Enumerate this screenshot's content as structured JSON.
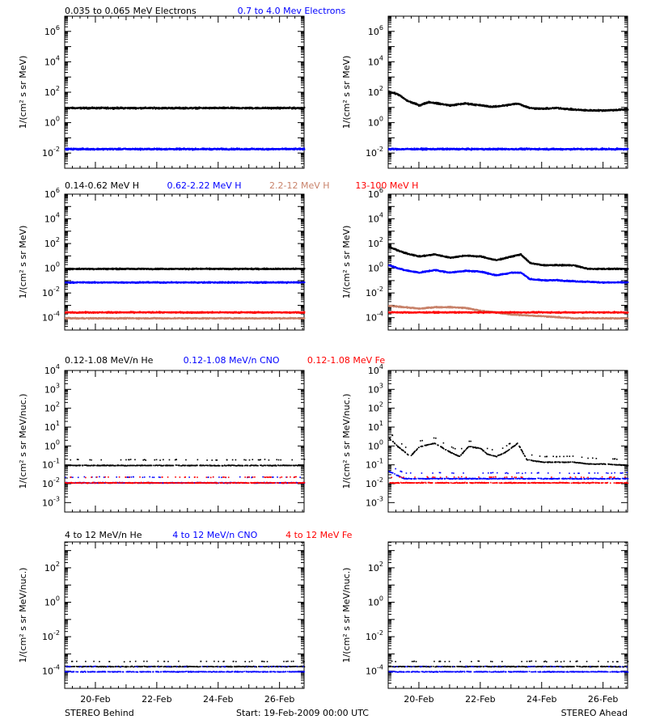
{
  "footer": {
    "left": "STEREO Behind",
    "center": "Start: 19-Feb-2009 00:00 UTC",
    "right": "STEREO Ahead"
  },
  "x_axis": {
    "range_days": [
      19,
      26.8
    ],
    "ticks": [
      20,
      22,
      24,
      26
    ],
    "tick_labels": [
      "20-Feb",
      "22-Feb",
      "24-Feb",
      "26-Feb"
    ]
  },
  "rows": [
    {
      "ylabel": "1/(cm² s sr MeV)",
      "legend": [
        {
          "text": "0.035 to 0.065 MeV Electrons",
          "color": "#000000"
        },
        {
          "text": "0.7 to 4.0 Mev Electrons",
          "color": "#0000ff"
        }
      ]
    },
    {
      "ylabel": "1/(cm² s sr MeV)",
      "legend": [
        {
          "text": "0.14-0.62 MeV H",
          "color": "#000000"
        },
        {
          "text": "0.62-2.22 MeV H",
          "color": "#0000ff"
        },
        {
          "text": "2.2-12 MeV H",
          "color": "#c8826a"
        },
        {
          "text": "13-100 MeV H",
          "color": "#ff0000"
        }
      ]
    },
    {
      "ylabel": "1/(cm² s sr MeV/nuc.)",
      "legend": [
        {
          "text": "0.12-1.08 MeV/n He",
          "color": "#000000"
        },
        {
          "text": "0.12-1.08 MeV/n CNO",
          "color": "#0000ff"
        },
        {
          "text": "0.12-1.08 MeV Fe",
          "color": "#ff0000"
        }
      ]
    },
    {
      "ylabel": "1/(cm² s sr MeV/nuc.)",
      "legend": [
        {
          "text": "4 to 12 MeV/n He",
          "color": "#000000"
        },
        {
          "text": "4 to 12 MeV/n CNO",
          "color": "#0000ff"
        },
        {
          "text": "4 to 12 MeV Fe",
          "color": "#ff0000"
        }
      ]
    }
  ],
  "chart_data": [
    {
      "type": "scatter",
      "panel": "electrons-behind",
      "x_unit": "day of Feb 2009",
      "ylog": true,
      "ylim_exp": [
        -3,
        7
      ],
      "ytick_exps": [
        -2,
        0,
        2,
        4,
        6
      ],
      "series": [
        {
          "name": "0.035 to 0.065 MeV Electrons",
          "color": "#000000",
          "points": [
            [
              19,
              10
            ],
            [
              26.8,
              10
            ]
          ]
        },
        {
          "name": "0.7 to 4.0 Mev Electrons",
          "color": "#0000ff",
          "points": [
            [
              19,
              0.02
            ],
            [
              26.8,
              0.02
            ]
          ]
        }
      ]
    },
    {
      "type": "scatter",
      "panel": "electrons-ahead",
      "x_unit": "day of Feb 2009",
      "ylog": true,
      "ylim_exp": [
        -3,
        7
      ],
      "ytick_exps": [
        -2,
        0,
        2,
        4,
        6
      ],
      "series": [
        {
          "name": "0.035 to 0.065 MeV Electrons",
          "color": "#000000",
          "points": [
            [
              19,
              120
            ],
            [
              19.3,
              80
            ],
            [
              19.6,
              30
            ],
            [
              20,
              15
            ],
            [
              20.3,
              25
            ],
            [
              20.6,
              20
            ],
            [
              21,
              15
            ],
            [
              21.5,
              20
            ],
            [
              22,
              15
            ],
            [
              22.4,
              12
            ],
            [
              22.8,
              15
            ],
            [
              23.2,
              20
            ],
            [
              23.6,
              10
            ],
            [
              24,
              9
            ],
            [
              24.5,
              10
            ],
            [
              25,
              8
            ],
            [
              25.5,
              7
            ],
            [
              26,
              7
            ],
            [
              26.8,
              8
            ]
          ]
        },
        {
          "name": "0.7 to 4.0 Mev Electrons",
          "color": "#0000ff",
          "points": [
            [
              19,
              0.02
            ],
            [
              26.8,
              0.02
            ]
          ]
        }
      ]
    },
    {
      "type": "scatter",
      "panel": "protons-behind",
      "x_unit": "day of Feb 2009",
      "ylog": true,
      "ylim_exp": [
        -5,
        6
      ],
      "ytick_exps": [
        -4,
        -2,
        0,
        2,
        4,
        6
      ],
      "series": [
        {
          "name": "0.14-0.62 MeV H",
          "color": "#000000",
          "points": [
            [
              19,
              1
            ],
            [
              26.8,
              1
            ]
          ]
        },
        {
          "name": "0.62-2.22 MeV H",
          "color": "#0000ff",
          "points": [
            [
              19,
              0.08
            ],
            [
              26.8,
              0.08
            ]
          ]
        },
        {
          "name": "2.2-12 MeV H",
          "color": "#c8826a",
          "points": [
            [
              19,
              0.0001
            ],
            [
              26.8,
              0.0001
            ]
          ]
        },
        {
          "name": "13-100 MeV H",
          "color": "#ff0000",
          "points": [
            [
              19,
              0.0003
            ],
            [
              26.8,
              0.0003
            ]
          ]
        }
      ]
    },
    {
      "type": "scatter",
      "panel": "protons-ahead",
      "x_unit": "day of Feb 2009",
      "ylog": true,
      "ylim_exp": [
        -5,
        6
      ],
      "ytick_exps": [
        -4,
        -2,
        0,
        2,
        4,
        6
      ],
      "series": [
        {
          "name": "0.14-0.62 MeV H",
          "color": "#000000",
          "points": [
            [
              19,
              60
            ],
            [
              19.5,
              20
            ],
            [
              20,
              10
            ],
            [
              20.5,
              15
            ],
            [
              21,
              8
            ],
            [
              21.5,
              12
            ],
            [
              22,
              10
            ],
            [
              22.5,
              5
            ],
            [
              23,
              10
            ],
            [
              23.3,
              15
            ],
            [
              23.6,
              3
            ],
            [
              24,
              2
            ],
            [
              24.5,
              2
            ],
            [
              25,
              2
            ],
            [
              25.5,
              1
            ],
            [
              26,
              1
            ],
            [
              26.8,
              1
            ]
          ]
        },
        {
          "name": "0.62-2.22 MeV H",
          "color": "#0000ff",
          "points": [
            [
              19,
              2
            ],
            [
              19.5,
              0.8
            ],
            [
              20,
              0.5
            ],
            [
              20.5,
              0.8
            ],
            [
              21,
              0.5
            ],
            [
              21.5,
              0.7
            ],
            [
              22,
              0.6
            ],
            [
              22.5,
              0.3
            ],
            [
              23,
              0.5
            ],
            [
              23.3,
              0.5
            ],
            [
              23.6,
              0.15
            ],
            [
              24,
              0.12
            ],
            [
              24.5,
              0.12
            ],
            [
              25,
              0.1
            ],
            [
              25.5,
              0.09
            ],
            [
              26,
              0.08
            ],
            [
              26.8,
              0.08
            ]
          ]
        },
        {
          "name": "2.2-12 MeV H",
          "color": "#c8826a",
          "points": [
            [
              19,
              0.001
            ],
            [
              19.5,
              0.0008
            ],
            [
              20,
              0.0006
            ],
            [
              20.5,
              0.0008
            ],
            [
              21,
              0.0008
            ],
            [
              21.5,
              0.0007
            ],
            [
              22,
              0.0004
            ],
            [
              22.5,
              0.0003
            ],
            [
              23,
              0.0002
            ],
            [
              24,
              0.00015
            ],
            [
              25,
              0.0001
            ],
            [
              26.8,
              0.0001
            ]
          ]
        },
        {
          "name": "13-100 MeV H",
          "color": "#ff0000",
          "points": [
            [
              19,
              0.0003
            ],
            [
              26.8,
              0.0003
            ]
          ]
        }
      ]
    },
    {
      "type": "scatter",
      "panel": "heavy-low-behind",
      "x_unit": "day of Feb 2009",
      "ylog": true,
      "ylim_exp": [
        -3.5,
        4
      ],
      "ytick_exps": [
        -3,
        -2,
        -1,
        0,
        1,
        2,
        3,
        4
      ],
      "series": [
        {
          "name": "0.12-1.08 MeV/n He",
          "color": "#000000",
          "points": [
            [
              19,
              0.1
            ],
            [
              26.8,
              0.1
            ]
          ]
        },
        {
          "name": "0.12-1.08 MeV/n CNO",
          "color": "#0000ff",
          "points": [
            [
              19,
              0.012
            ],
            [
              26.8,
              0.012
            ]
          ]
        },
        {
          "name": "0.12-1.08 MeV Fe",
          "color": "#ff0000",
          "points": [
            [
              19,
              0.012
            ],
            [
              26.8,
              0.012
            ]
          ]
        }
      ]
    },
    {
      "type": "scatter",
      "panel": "heavy-low-ahead",
      "x_unit": "day of Feb 2009",
      "ylog": true,
      "ylim_exp": [
        -3.5,
        4
      ],
      "ytick_exps": [
        -3,
        -2,
        -1,
        0,
        1,
        2,
        3,
        4
      ],
      "series": [
        {
          "name": "0.12-1.08 MeV/n He",
          "color": "#000000",
          "points": [
            [
              19,
              3
            ],
            [
              19.3,
              1
            ],
            [
              19.7,
              0.3
            ],
            [
              20,
              1
            ],
            [
              20.5,
              1.5
            ],
            [
              21,
              0.5
            ],
            [
              21.3,
              0.3
            ],
            [
              21.6,
              1
            ],
            [
              22,
              0.8
            ],
            [
              22.2,
              0.4
            ],
            [
              22.5,
              0.3
            ],
            [
              22.8,
              0.5
            ],
            [
              23.2,
              1.5
            ],
            [
              23.5,
              0.2
            ],
            [
              24,
              0.15
            ],
            [
              24.5,
              0.15
            ],
            [
              25,
              0.15
            ],
            [
              25.5,
              0.12
            ],
            [
              26,
              0.12
            ],
            [
              26.8,
              0.1
            ]
          ]
        },
        {
          "name": "0.12-1.08 MeV/n CNO",
          "color": "#0000ff",
          "points": [
            [
              19,
              0.05
            ],
            [
              19.5,
              0.02
            ],
            [
              26.8,
              0.02
            ]
          ]
        },
        {
          "name": "0.12-1.08 MeV Fe",
          "color": "#ff0000",
          "points": [
            [
              19,
              0.012
            ],
            [
              26.8,
              0.012
            ]
          ]
        }
      ]
    },
    {
      "type": "scatter",
      "panel": "heavy-high-behind",
      "x_unit": "day of Feb 2009",
      "ylog": true,
      "ylim_exp": [
        -5,
        3.5
      ],
      "ytick_exps": [
        -4,
        -2,
        0,
        2
      ],
      "series": [
        {
          "name": "4 to 12 MeV/n He",
          "color": "#000000",
          "points": [
            [
              19,
              0.0002
            ],
            [
              26.8,
              0.0002
            ]
          ]
        },
        {
          "name": "4 to 12 MeV/n CNO",
          "color": "#0000ff",
          "points": [
            [
              19,
              0.0001
            ],
            [
              26.8,
              0.0001
            ]
          ]
        },
        {
          "name": "4 to 12 MeV Fe",
          "color": "#ff0000",
          "points": []
        }
      ]
    },
    {
      "type": "scatter",
      "panel": "heavy-high-ahead",
      "x_unit": "day of Feb 2009",
      "ylog": true,
      "ylim_exp": [
        -5,
        3.5
      ],
      "ytick_exps": [
        -4,
        -2,
        0,
        2
      ],
      "series": [
        {
          "name": "4 to 12 MeV/n He",
          "color": "#000000",
          "points": [
            [
              19,
              0.0002
            ],
            [
              26.8,
              0.0002
            ]
          ]
        },
        {
          "name": "4 to 12 MeV/n CNO",
          "color": "#0000ff",
          "points": [
            [
              19,
              0.0001
            ],
            [
              26.8,
              0.0001
            ]
          ]
        },
        {
          "name": "4 to 12 MeV Fe",
          "color": "#ff0000",
          "points": []
        }
      ]
    }
  ]
}
